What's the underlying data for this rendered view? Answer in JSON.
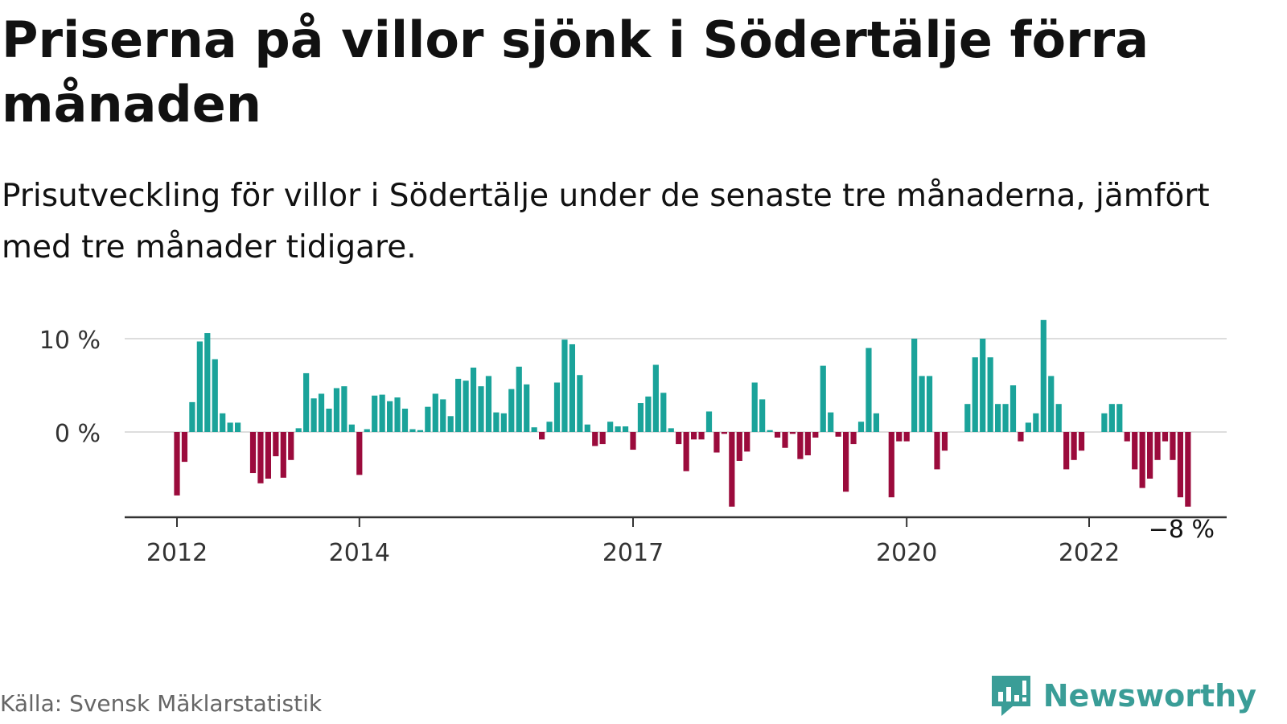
{
  "title": "Priserna på villor sjönk i Södertälje förra månaden",
  "subtitle": "Prisutveckling för villor i Södertälje under de senaste tre månaderna, jämfört med tre månader tidigare.",
  "source": "Källa: Svensk Mäklarstatistik",
  "brand": "Newsworthy",
  "colors": {
    "positive": "#1aa39a",
    "negative": "#9b0b3c",
    "grid": "#dddddd",
    "axis": "#333333",
    "brand": "#3a9d97"
  },
  "chart_data": {
    "type": "bar",
    "title": "",
    "xlabel": "",
    "ylabel": "",
    "ylim": [
      -9.2,
      12.5
    ],
    "y_ticks": [
      {
        "value": 0,
        "label": "0 %"
      },
      {
        "value": 10,
        "label": "10 %"
      }
    ],
    "x_ticks": [
      {
        "index": 0,
        "label": "2012"
      },
      {
        "index": 24,
        "label": "2014"
      },
      {
        "index": 60,
        "label": "2017"
      },
      {
        "index": 96,
        "label": "2020"
      },
      {
        "index": 120,
        "label": "2022"
      }
    ],
    "last_value_label": "−8 %",
    "grid": true,
    "series": [
      {
        "values": [
          -6.8,
          -3.2,
          3.2,
          9.7,
          10.6,
          7.8,
          2.0,
          1.0,
          1.0,
          0,
          -4.4,
          -5.5,
          -5.0,
          -2.6,
          -4.9,
          -3.0,
          0.4,
          6.3,
          3.6,
          4.1,
          2.5,
          4.7,
          4.9,
          0.8,
          -4.6,
          0.3,
          3.9,
          4.0,
          3.3,
          3.7,
          2.5,
          0.3,
          0.2,
          2.7,
          4.1,
          3.5,
          1.7,
          5.7,
          5.5,
          6.9,
          4.9,
          6.0,
          2.1,
          2.0,
          4.6,
          7.0,
          5.1,
          0.5,
          -0.8,
          1.1,
          5.3,
          9.9,
          9.4,
          6.1,
          0.8,
          -1.5,
          -1.3,
          1.1,
          0.6,
          0.6,
          -1.9,
          3.1,
          3.8,
          7.2,
          4.2,
          0.4,
          -1.3,
          -4.2,
          -0.8,
          -0.8,
          2.2,
          -2.2,
          -0.2,
          -8.0,
          -3.1,
          -2.1,
          5.3,
          3.5,
          0.2,
          -0.6,
          -1.7,
          -0.2,
          -2.9,
          -2.5,
          -0.6,
          7.1,
          2.1,
          -0.5,
          -6.4,
          -1.3,
          1.1,
          9.0,
          2.0,
          0,
          -7.0,
          -1.0,
          -1.0,
          10.0,
          6.0,
          6.0,
          -4.0,
          -2.0,
          0,
          0,
          3.0,
          8.0,
          10.0,
          8.0,
          3.0,
          3.0,
          5.0,
          -1.0,
          1.0,
          2.0,
          12.0,
          6.0,
          3.0,
          -4.0,
          -3.0,
          -2.0,
          0,
          0,
          2.0,
          3.0,
          3.0,
          -1.0,
          -4.0,
          -6.0,
          -5.0,
          -3.0,
          -1.0,
          -3.0,
          -7.0,
          -8.0
        ]
      }
    ]
  }
}
